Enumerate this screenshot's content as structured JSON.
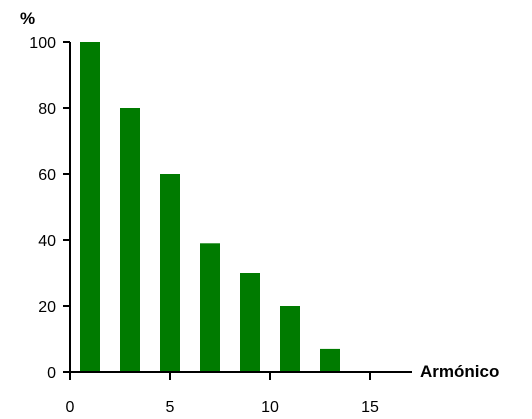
{
  "chart_data": {
    "type": "bar",
    "x": [
      1,
      3,
      5,
      7,
      9,
      11,
      13
    ],
    "values": [
      100,
      80,
      60,
      39,
      30,
      20,
      7
    ],
    "xlabel": "Armónico",
    "ylabel": "%",
    "xlim": [
      0,
      17
    ],
    "ylim": [
      0,
      100
    ],
    "xticks": [
      0,
      5,
      10,
      15
    ],
    "yticks": [
      0,
      20,
      40,
      60,
      80,
      100
    ],
    "bar_color": "#007b00",
    "grid": false
  }
}
